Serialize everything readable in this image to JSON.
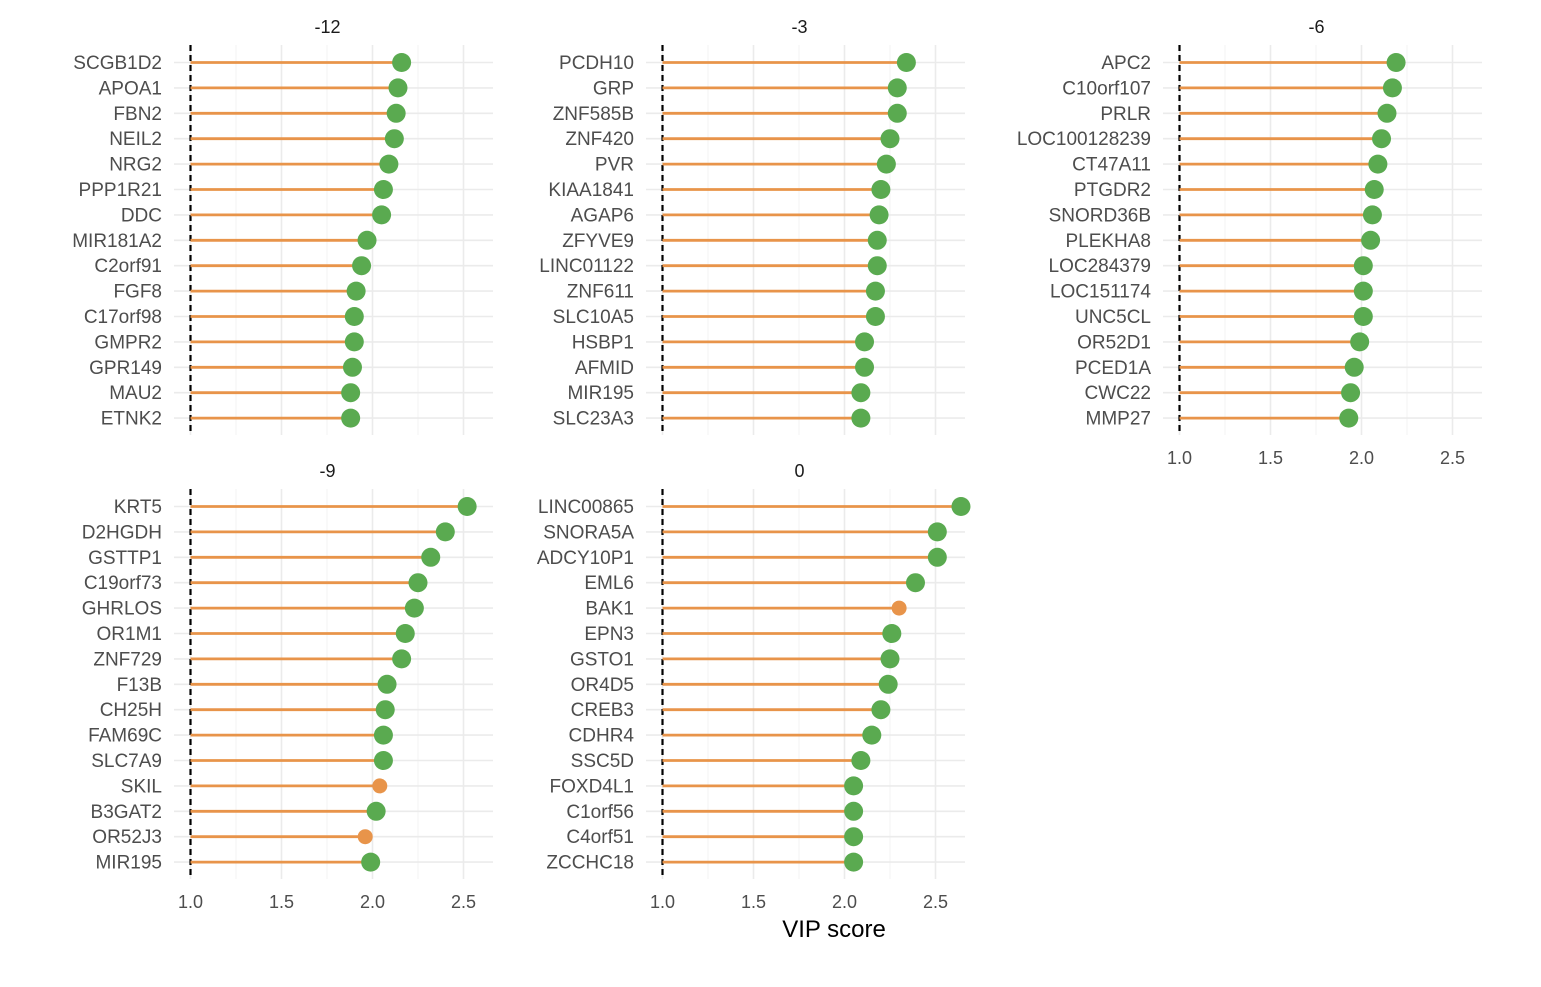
{
  "chart_data": {
    "type": "lollipop",
    "xlabel": "VIP score",
    "xlim": [
      1.0,
      2.75
    ],
    "xticks": [
      "1.0",
      "1.5",
      "2.0",
      "2.5"
    ],
    "reference_line": 1.0,
    "colors": {
      "stem": "#e8944a",
      "high": "#5aaa50",
      "low": "#e8944a"
    },
    "panels": [
      {
        "title": "-12",
        "genes": [
          "SCGB1D2",
          "APOA1",
          "FBN2",
          "NEIL2",
          "NRG2",
          "PPP1R21",
          "DDC",
          "MIR181A2",
          "C2orf91",
          "FGF8",
          "C17orf98",
          "GMPR2",
          "GPR149",
          "MAU2",
          "ETNK2"
        ],
        "values": [
          2.16,
          2.14,
          2.13,
          2.12,
          2.09,
          2.06,
          2.05,
          1.97,
          1.94,
          1.91,
          1.9,
          1.9,
          1.89,
          1.88,
          1.88
        ],
        "groups": [
          "high",
          "high",
          "high",
          "high",
          "high",
          "high",
          "high",
          "high",
          "high",
          "high",
          "high",
          "high",
          "high",
          "high",
          "high"
        ],
        "show_x_ticks": false
      },
      {
        "title": "-3",
        "genes": [
          "PCDH10",
          "GRP",
          "ZNF585B",
          "ZNF420",
          "PVR",
          "KIAA1841",
          "AGAP6",
          "ZFYVE9",
          "LINC01122",
          "ZNF611",
          "SLC10A5",
          "HSBP1",
          "AFMID",
          "MIR195",
          "SLC23A3"
        ],
        "values": [
          2.34,
          2.29,
          2.29,
          2.25,
          2.23,
          2.2,
          2.19,
          2.18,
          2.18,
          2.17,
          2.17,
          2.11,
          2.11,
          2.09,
          2.09
        ],
        "groups": [
          "high",
          "high",
          "high",
          "high",
          "high",
          "high",
          "high",
          "high",
          "high",
          "high",
          "high",
          "high",
          "high",
          "high",
          "high"
        ],
        "show_x_ticks": false
      },
      {
        "title": "-6",
        "genes": [
          "APC2",
          "C10orf107",
          "PRLR",
          "LOC100128239",
          "CT47A11",
          "PTGDR2",
          "SNORD36B",
          "PLEKHA8",
          "LOC284379",
          "LOC151174",
          "UNC5CL",
          "OR52D1",
          "PCED1A",
          "CWC22",
          "MMP27"
        ],
        "values": [
          2.19,
          2.17,
          2.14,
          2.11,
          2.09,
          2.07,
          2.06,
          2.05,
          2.01,
          2.01,
          2.01,
          1.99,
          1.96,
          1.94,
          1.93
        ],
        "groups": [
          "high",
          "high",
          "high",
          "high",
          "high",
          "high",
          "high",
          "high",
          "high",
          "high",
          "high",
          "high",
          "high",
          "high",
          "high"
        ],
        "show_x_ticks": true
      },
      {
        "title": "-9",
        "genes": [
          "KRT5",
          "D2HGDH",
          "GSTTP1",
          "C19orf73",
          "GHRLOS",
          "OR1M1",
          "ZNF729",
          "F13B",
          "CH25H",
          "FAM69C",
          "SLC7A9",
          "SKIL",
          "B3GAT2",
          "OR52J3",
          "MIR195"
        ],
        "values": [
          2.52,
          2.4,
          2.32,
          2.25,
          2.23,
          2.18,
          2.16,
          2.08,
          2.07,
          2.06,
          2.06,
          2.04,
          2.02,
          1.96,
          1.99
        ],
        "groups": [
          "high",
          "high",
          "high",
          "high",
          "high",
          "high",
          "high",
          "high",
          "high",
          "high",
          "high",
          "low",
          "high",
          "low",
          "high"
        ],
        "show_x_ticks": true
      },
      {
        "title": "0",
        "genes": [
          "LINC00865",
          "SNORA5A",
          "ADCY10P1",
          "EML6",
          "BAK1",
          "EPN3",
          "GSTO1",
          "OR4D5",
          "CREB3",
          "CDHR4",
          "SSC5D",
          "FOXD4L1",
          "C1orf56",
          "C4orf51",
          "ZCCHC18"
        ],
        "values": [
          2.64,
          2.51,
          2.51,
          2.39,
          2.3,
          2.26,
          2.25,
          2.24,
          2.2,
          2.15,
          2.09,
          2.05,
          2.05,
          2.05,
          2.05
        ],
        "groups": [
          "high",
          "high",
          "high",
          "high",
          "low",
          "high",
          "high",
          "high",
          "high",
          "high",
          "high",
          "high",
          "high",
          "high",
          "high"
        ],
        "show_x_ticks": true
      }
    ]
  }
}
